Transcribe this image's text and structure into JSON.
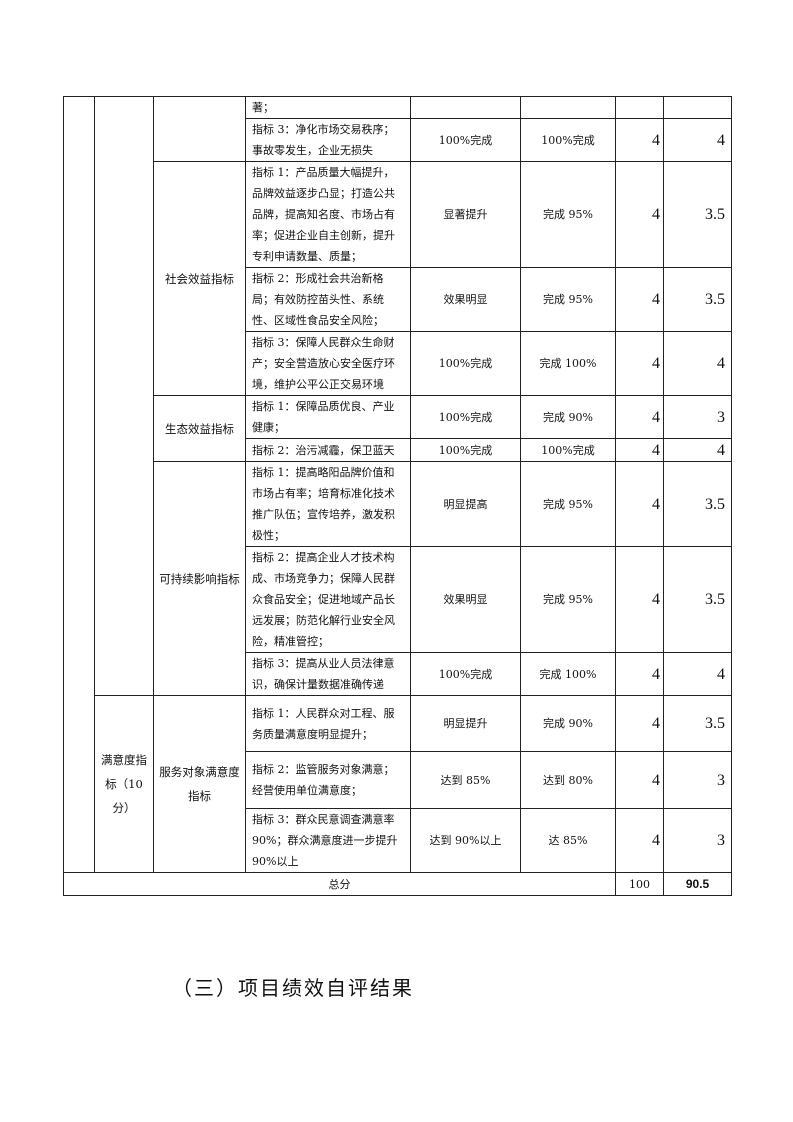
{
  "table": {
    "rows": [
      {
        "indicator": "著；",
        "target": "",
        "actual": "",
        "weight": "",
        "score": ""
      },
      {
        "indicator": "指标 3：净化市场交易秩序；事故零发生，企业无损失",
        "target": "100%完成",
        "actual": "100%完成",
        "weight": "4",
        "score": "4"
      },
      {
        "indicator": "指标 1：产品质量大幅提升，品牌效益逐步凸显；打造公共品牌，提高知名度、市场占有率；促进企业自主创新，提升专利申请数量、质量；",
        "target": "显著提升",
        "actual": "完成 95%",
        "weight": "4",
        "score": "3.5"
      },
      {
        "indicator": "指标 2：形成社会共治新格局；有效防控苗头性、系统性、区域性食品安全风险；",
        "target": "效果明显",
        "actual": "完成 95%",
        "weight": "4",
        "score": "3.5"
      },
      {
        "indicator": "指标 3：保障人民群众生命财产；安全营造放心安全医疗环境，维护公平公正交易环境",
        "target": "100%完成",
        "actual": "完成 100%",
        "weight": "4",
        "score": "4"
      },
      {
        "indicator": "指标 1：保障品质优良、产业健康；",
        "target": "100%完成",
        "actual": "完成 90%",
        "weight": "4",
        "score": "3"
      },
      {
        "indicator": "指标 2：治污减霾，保卫蓝天",
        "target": "100%完成",
        "actual": "100%完成",
        "weight": "4",
        "score": "4"
      },
      {
        "indicator": "指标 1：提高略阳品牌价值和市场占有率；培育标准化技术推广队伍；宣传培养，激发积极性；",
        "target": "明显提高",
        "actual": "完成 95%",
        "weight": "4",
        "score": "3.5"
      },
      {
        "indicator": "指标 2：提高企业人才技术构成、市场竞争力；保障人民群众食品安全；促进地域产品长远发展；防范化解行业安全风险，精准管控；",
        "target": "效果明显",
        "actual": "完成 95%",
        "weight": "4",
        "score": "3.5"
      },
      {
        "indicator": "指标 3：提高从业人员法律意识，确保计量数据准确传递",
        "target": "100%完成",
        "actual": "完成 100%",
        "weight": "4",
        "score": "4"
      },
      {
        "indicator": "指标 1：人民群众对工程、服务质量满意度明显提升；",
        "target": "明显提升",
        "actual": "完成 90%",
        "weight": "4",
        "score": "3.5"
      },
      {
        "indicator": "指标 2：监管服务对象满意；经营使用单位满意度；",
        "target": "达到 85%",
        "actual": "达到 80%",
        "weight": "4",
        "score": "3"
      },
      {
        "indicator": "指标 3：群众民意调查满意率 90%；群众满意度进一步提升 90%以上",
        "target": "达到 90%以上",
        "actual": "达 85%",
        "weight": "4",
        "score": "3"
      }
    ],
    "categories": {
      "social": "社会效益指标",
      "ecological": "生态效益指标",
      "sustainable": "可持续影响指标",
      "satisfaction_level1": "满意度指标（10分）",
      "satisfaction_level2": "服务对象满意度指标"
    },
    "total": {
      "label": "总分",
      "weight": "100",
      "score": "90.5"
    }
  },
  "section_heading": "（三）项目绩效自评结果"
}
